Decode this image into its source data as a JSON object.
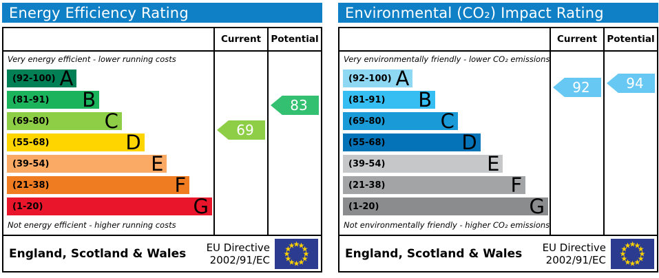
{
  "chart_data": [
    {
      "type": "bar",
      "subtype": "epc-band-rating",
      "title": "Energy Efficiency Rating",
      "top_note": "Very energy efficient - lower running costs",
      "bottom_note": "Not energy efficient - higher running costs",
      "col_current": "Current",
      "col_potential": "Potential",
      "bands": [
        {
          "letter": "A",
          "range_label": "(92-100)",
          "min": 92,
          "max": 100,
          "color": "#008054",
          "width_pct": 34
        },
        {
          "letter": "B",
          "range_label": "(81-91)",
          "min": 81,
          "max": 91,
          "color": "#1bb35b",
          "width_pct": 45
        },
        {
          "letter": "C",
          "range_label": "(69-80)",
          "min": 69,
          "max": 80,
          "color": "#8dce46",
          "width_pct": 56
        },
        {
          "letter": "D",
          "range_label": "(55-68)",
          "min": 55,
          "max": 68,
          "color": "#ffd500",
          "width_pct": 67
        },
        {
          "letter": "E",
          "range_label": "(39-54)",
          "min": 39,
          "max": 54,
          "color": "#fbaa65",
          "width_pct": 78
        },
        {
          "letter": "F",
          "range_label": "(21-38)",
          "min": 21,
          "max": 38,
          "color": "#f07c22",
          "width_pct": 89
        },
        {
          "letter": "G",
          "range_label": "(1-20)",
          "min": 1,
          "max": 20,
          "color": "#e9152b",
          "width_pct": 100
        }
      ],
      "current": {
        "value": 69,
        "color": "#8dce46"
      },
      "potential": {
        "value": 83,
        "color": "#33c171"
      }
    },
    {
      "type": "bar",
      "subtype": "epc-band-rating",
      "title": "Environmental (CO₂) Impact Rating",
      "top_note": "Very environmentally friendly - lower CO₂ emissions",
      "bottom_note": "Not environmentally friendly - higher CO₂ emissions",
      "col_current": "Current",
      "col_potential": "Potential",
      "bands": [
        {
          "letter": "A",
          "range_label": "(92-100)",
          "min": 92,
          "max": 100,
          "color": "#8ed8f4",
          "width_pct": 34
        },
        {
          "letter": "B",
          "range_label": "(81-91)",
          "min": 81,
          "max": 91,
          "color": "#36bdf1",
          "width_pct": 45
        },
        {
          "letter": "C",
          "range_label": "(69-80)",
          "min": 69,
          "max": 80,
          "color": "#1b9ad8",
          "width_pct": 56
        },
        {
          "letter": "D",
          "range_label": "(55-68)",
          "min": 55,
          "max": 68,
          "color": "#0473b8",
          "width_pct": 67
        },
        {
          "letter": "E",
          "range_label": "(39-54)",
          "min": 39,
          "max": 54,
          "color": "#c6c7c9",
          "width_pct": 78
        },
        {
          "letter": "F",
          "range_label": "(21-38)",
          "min": 21,
          "max": 38,
          "color": "#a3a4a6",
          "width_pct": 89
        },
        {
          "letter": "G",
          "range_label": "(1-20)",
          "min": 1,
          "max": 20,
          "color": "#8a8c8e",
          "width_pct": 100
        }
      ],
      "current": {
        "value": 92,
        "color": "#67c9f3"
      },
      "potential": {
        "value": 94,
        "color": "#67c9f3"
      }
    }
  ],
  "footer": {
    "region": "England, Scotland & Wales",
    "directive_line1": "EU Directive",
    "directive_line2": "2002/91/EC"
  },
  "colors": {
    "header_bg": "#1080c6",
    "eu_flag_bg": "#2b3b8f",
    "eu_flag_stars": "#ffd200"
  }
}
